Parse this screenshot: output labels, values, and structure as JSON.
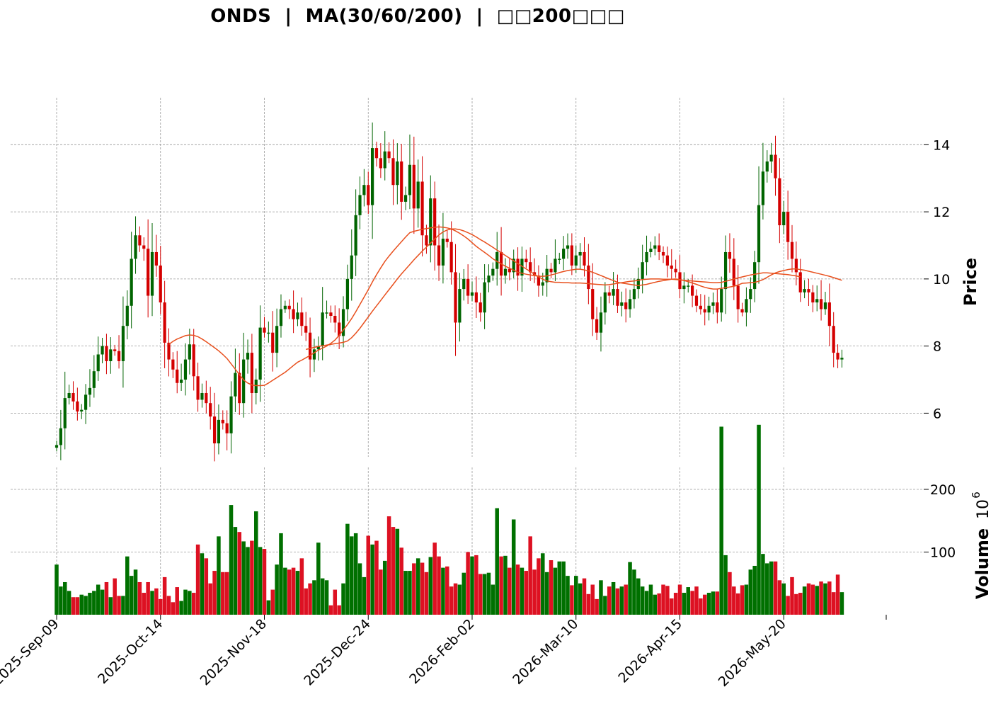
{
  "chart_data": {
    "type": "candlestick",
    "title": "ONDS  |  MA(30/60/200)  |  □□200□□□",
    "price_panel": {
      "ylabel": "Price",
      "ylim": [
        4.7,
        15.4
      ],
      "yticks": [
        6,
        8,
        10,
        12,
        14
      ]
    },
    "volume_panel": {
      "ylabel": "Volume",
      "unit_exponent": "10",
      "unit_power": "6",
      "ylim": [
        0,
        235
      ],
      "yticks": [
        100,
        200
      ]
    },
    "x_labels": [
      {
        "index": 0,
        "label": "2025-Sep-09"
      },
      {
        "index": 25,
        "label": "2025-Oct-14"
      },
      {
        "index": 50,
        "label": "2025-Nov-18"
      },
      {
        "index": 75,
        "label": "2025-Dec-24"
      },
      {
        "index": 100,
        "label": "2026-Feb-02"
      },
      {
        "index": 125,
        "label": "2026-Mar-10"
      },
      {
        "index": 150,
        "label": "2026-Apr-15"
      },
      {
        "index": 175,
        "label": "2026-May-20"
      }
    ],
    "colors": {
      "up": "#006400",
      "down": "#d40000",
      "up_volume": "#007000",
      "down_volume": "#dd1122",
      "ma": "#e8501e",
      "grid": "#9a9a9a"
    },
    "closes": [
      5.05,
      5.55,
      6.45,
      6.6,
      6.35,
      6.05,
      6.1,
      6.55,
      6.75,
      7.25,
      7.75,
      8.0,
      7.55,
      7.9,
      7.85,
      7.55,
      8.6,
      9.2,
      10.6,
      11.3,
      11.0,
      10.9,
      9.5,
      10.8,
      10.4,
      9.3,
      8.1,
      7.6,
      7.3,
      6.9,
      7.0,
      7.6,
      8.05,
      7.1,
      6.4,
      6.6,
      6.3,
      5.9,
      5.1,
      5.8,
      5.7,
      5.4,
      6.5,
      7.2,
      6.3,
      7.6,
      7.8,
      6.6,
      7.0,
      8.55,
      8.4,
      8.4,
      7.8,
      8.6,
      9.1,
      9.2,
      9.1,
      8.8,
      9.0,
      8.6,
      8.4,
      7.6,
      7.9,
      8.0,
      9.0,
      9.0,
      8.9,
      8.7,
      8.3,
      9.1,
      10.0,
      10.7,
      11.9,
      12.5,
      12.8,
      12.2,
      13.9,
      13.6,
      13.3,
      13.8,
      13.6,
      12.8,
      13.5,
      12.3,
      12.5,
      13.4,
      12.1,
      12.9,
      11.3,
      11.0,
      12.4,
      11.0,
      10.4,
      11.2,
      11.1,
      10.2,
      8.7,
      9.7,
      10.0,
      9.5,
      9.6,
      9.3,
      9.0,
      9.9,
      10.1,
      10.3,
      10.8,
      10.1,
      10.3,
      10.2,
      10.6,
      10.1,
      10.6,
      10.5,
      10.2,
      10.1,
      9.8,
      9.9,
      10.3,
      10.2,
      10.6,
      10.6,
      10.9,
      11.0,
      10.4,
      10.7,
      10.8,
      10.4,
      9.7,
      8.8,
      8.4,
      9.0,
      9.6,
      9.5,
      9.7,
      9.2,
      9.3,
      9.1,
      9.4,
      9.7,
      10.0,
      10.5,
      10.8,
      10.9,
      11.0,
      10.8,
      10.7,
      10.4,
      10.3,
      10.2,
      9.7,
      9.8,
      9.8,
      9.5,
      9.2,
      9.1,
      9.0,
      9.2,
      9.3,
      9.0,
      9.7,
      10.8,
      10.6,
      9.8,
      9.1,
      9.0,
      9.4,
      9.7,
      10.5,
      12.2,
      13.2,
      13.5,
      13.7,
      13.0,
      11.6,
      12.0,
      11.1,
      10.6,
      10.2,
      9.6,
      9.7,
      9.6,
      9.3,
      9.4,
      9.1,
      9.3,
      8.6,
      7.8,
      7.6,
      7.65
    ],
    "volumes": [
      80,
      45,
      52,
      38,
      28,
      28,
      32,
      30,
      35,
      38,
      48,
      40,
      52,
      28,
      58,
      30,
      30,
      93,
      62,
      72,
      52,
      35,
      52,
      38,
      42,
      25,
      60,
      30,
      20,
      44,
      22,
      40,
      38,
      35,
      112,
      98,
      90,
      50,
      70,
      125,
      68,
      68,
      175,
      140,
      132,
      117,
      108,
      118,
      165,
      108,
      105,
      23,
      40,
      80,
      130,
      75,
      72,
      75,
      70,
      90,
      42,
      50,
      55,
      115,
      58,
      55,
      15,
      40,
      15,
      50,
      145,
      125,
      130,
      82,
      60,
      126,
      112,
      118,
      72,
      86,
      157,
      140,
      137,
      107,
      70,
      70,
      82,
      90,
      83,
      68,
      92,
      115,
      93,
      75,
      77,
      45,
      50,
      48,
      67,
      100,
      93,
      95,
      65,
      65,
      67,
      48,
      170,
      93,
      94,
      75,
      152,
      80,
      75,
      70,
      125,
      72,
      90,
      98,
      68,
      87,
      75,
      85,
      85,
      62,
      47,
      62,
      50,
      58,
      33,
      48,
      25,
      55,
      30,
      45,
      52,
      42,
      45,
      48,
      84,
      72,
      58,
      45,
      38,
      48,
      32,
      34,
      48,
      46,
      26,
      35,
      48,
      35,
      44,
      38,
      45,
      26,
      32,
      35,
      37,
      37,
      300,
      95,
      68,
      45,
      34,
      47,
      48,
      72,
      78,
      303,
      97,
      82,
      85,
      85,
      55,
      50,
      30,
      60,
      33,
      35,
      45,
      50,
      48,
      46,
      53,
      50,
      53,
      36,
      64,
      36
    ],
    "ma30": [
      null,
      null,
      null,
      null,
      null,
      null,
      null,
      null,
      null,
      null,
      null,
      null,
      null,
      null,
      null,
      null,
      null,
      null,
      null,
      null,
      null,
      null,
      null,
      null,
      null,
      null,
      null,
      8.05,
      8.14,
      8.21,
      8.26,
      8.31,
      8.33,
      8.32,
      8.28,
      8.21,
      8.13,
      8.04,
      7.95,
      7.86,
      7.75,
      7.63,
      7.47,
      7.31,
      7.15,
      6.99,
      6.9,
      6.84,
      6.82,
      6.82,
      6.83,
      6.9,
      6.98,
      7.06,
      7.14,
      7.22,
      7.32,
      7.42,
      7.52,
      7.58,
      7.65,
      7.72,
      7.8,
      7.88,
      7.94,
      8.0,
      8.08,
      8.18,
      8.32,
      8.48,
      8.64,
      8.82,
      9.02,
      9.24,
      9.46,
      9.68,
      9.91,
      10.13,
      10.33,
      10.52,
      10.68,
      10.83,
      10.97,
      11.11,
      11.25,
      11.38,
      11.42,
      11.45,
      11.48,
      11.5,
      11.52,
      11.54,
      11.55,
      11.54,
      11.52,
      11.49,
      11.43,
      11.36,
      11.28,
      11.19,
      11.08,
      10.97,
      10.88,
      10.79,
      10.7,
      10.6,
      10.52,
      10.45,
      10.38,
      10.32,
      10.26,
      10.2,
      10.17,
      10.14,
      10.12,
      10.1,
      10.08,
      10.08,
      10.09,
      10.12,
      10.15,
      10.19,
      10.22,
      10.25,
      10.27,
      10.29,
      10.29,
      10.27,
      10.24,
      10.2,
      10.15,
      10.1,
      10.05,
      10.0,
      9.95,
      9.9,
      9.88,
      9.86,
      9.84,
      9.82,
      9.8,
      9.82,
      9.84,
      9.87,
      9.9,
      9.93,
      9.95,
      9.97,
      9.99,
      10.0,
      9.98,
      9.95,
      9.92,
      9.88,
      9.84,
      9.79,
      9.75,
      9.72,
      9.7,
      9.7,
      9.72,
      9.74,
      9.76,
      9.78,
      9.82,
      9.87,
      9.88,
      9.89,
      9.9,
      9.93,
      9.98,
      10.05,
      10.12,
      10.18,
      10.22,
      10.25,
      10.28,
      10.3,
      10.3,
      10.28,
      10.26,
      10.23,
      10.2,
      10.17,
      10.14,
      10.11,
      10.08,
      10.04,
      10.0,
      9.96
    ],
    "ma60": [
      null,
      null,
      null,
      null,
      null,
      null,
      null,
      null,
      null,
      null,
      null,
      null,
      null,
      null,
      null,
      null,
      null,
      null,
      null,
      null,
      null,
      null,
      null,
      null,
      null,
      null,
      null,
      null,
      null,
      null,
      null,
      null,
      null,
      null,
      null,
      null,
      null,
      null,
      null,
      null,
      null,
      null,
      null,
      null,
      null,
      null,
      null,
      null,
      null,
      null,
      null,
      null,
      null,
      null,
      null,
      null,
      null,
      null,
      null,
      null,
      7.9,
      7.93,
      7.96,
      7.99,
      8.01,
      8.03,
      8.05,
      8.07,
      8.09,
      8.11,
      8.15,
      8.25,
      8.38,
      8.53,
      8.7,
      8.87,
      9.04,
      9.2,
      9.36,
      9.52,
      9.68,
      9.84,
      10.0,
      10.15,
      10.29,
      10.43,
      10.57,
      10.7,
      10.83,
      10.95,
      11.07,
      11.19,
      11.31,
      11.4,
      11.46,
      11.49,
      11.49,
      11.47,
      11.43,
      11.38,
      11.32,
      11.25,
      11.17,
      11.1,
      11.02,
      10.94,
      10.86,
      10.78,
      10.7,
      10.62,
      10.54,
      10.46,
      10.38,
      10.3,
      10.22,
      10.14,
      10.06,
      9.99,
      9.94,
      9.92,
      9.9,
      9.9,
      9.89,
      9.89,
      9.88,
      9.88,
      9.88,
      9.87,
      9.86,
      9.85,
      9.84,
      9.83,
      9.82,
      9.83,
      9.85,
      9.87,
      9.89,
      9.91,
      9.93,
      9.94,
      9.96,
      9.98,
      9.99,
      10.0,
      10.0,
      10.0,
      9.99,
      9.99,
      9.99,
      9.98,
      9.97,
      9.96,
      9.95,
      9.94,
      9.93,
      9.92,
      9.91,
      9.9,
      9.89,
      9.89,
      9.9,
      9.93,
      9.96,
      10.0,
      10.03,
      10.06,
      10.09,
      10.12,
      10.14,
      10.16,
      10.18,
      10.18,
      10.17,
      10.16,
      10.15,
      10.14,
      10.13,
      10.11,
      10.09,
      10.06
    ]
  }
}
